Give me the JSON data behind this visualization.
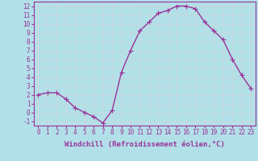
{
  "x": [
    0,
    1,
    2,
    3,
    4,
    5,
    6,
    7,
    8,
    9,
    10,
    11,
    12,
    13,
    14,
    15,
    16,
    17,
    18,
    19,
    20,
    21,
    22,
    23
  ],
  "y": [
    2.0,
    2.2,
    2.2,
    1.5,
    0.5,
    0.0,
    -0.5,
    -1.2,
    0.2,
    4.5,
    7.0,
    9.2,
    10.2,
    11.2,
    11.5,
    12.0,
    12.0,
    11.7,
    10.2,
    9.2,
    8.2,
    6.0,
    4.2,
    2.7
  ],
  "line_color": "#993399",
  "marker_color": "#993399",
  "bg_color": "#b2e0e8",
  "grid_color": "#c8d8dc",
  "xlabel": "Windchill (Refroidissement éolien,°C)",
  "xlim": [
    -0.5,
    23.5
  ],
  "ylim": [
    -1.5,
    12.5
  ],
  "yticks": [
    -1,
    0,
    1,
    2,
    3,
    4,
    5,
    6,
    7,
    8,
    9,
    10,
    11,
    12
  ],
  "xticks": [
    0,
    1,
    2,
    3,
    4,
    5,
    6,
    7,
    8,
    9,
    10,
    11,
    12,
    13,
    14,
    15,
    16,
    17,
    18,
    19,
    20,
    21,
    22,
    23
  ],
  "xlabel_fontsize": 6.5,
  "tick_fontsize": 5.5,
  "line_width": 1.0,
  "marker_size": 2.0
}
